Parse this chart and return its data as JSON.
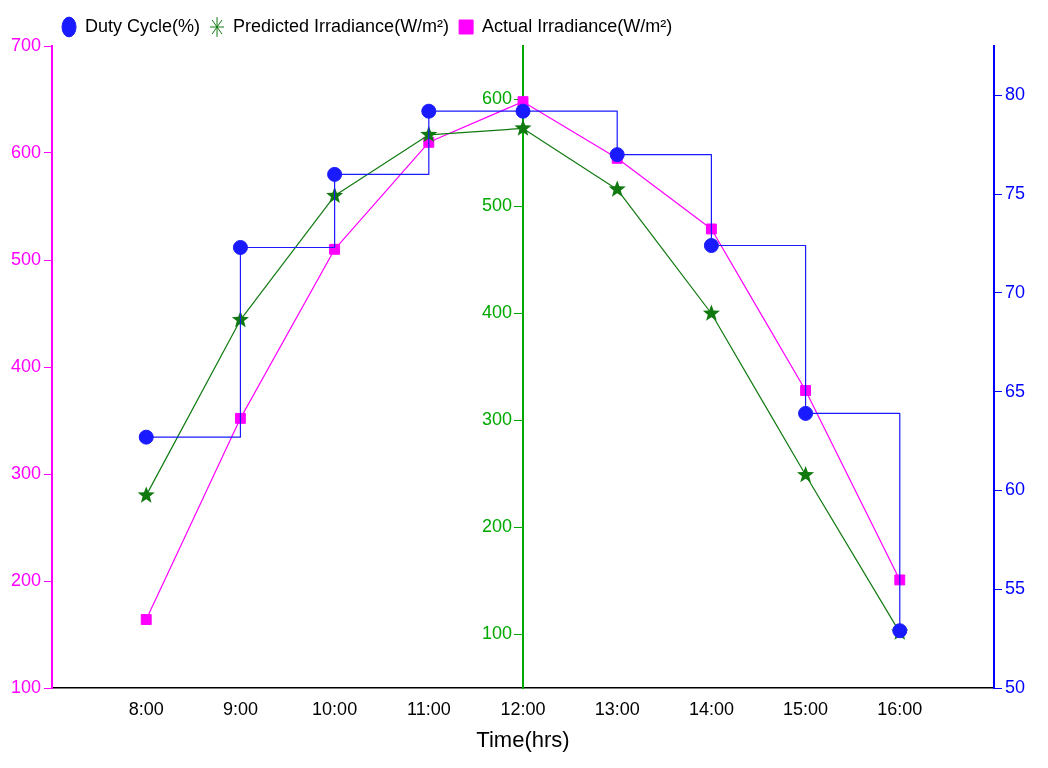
{
  "chart_data": {
    "type": "line",
    "xlabel": "Time(hrs)",
    "x": [
      8,
      9,
      10,
      11,
      12,
      13,
      14,
      15,
      16
    ],
    "xlim": [
      7,
      17
    ],
    "xticks": [
      {
        "value": 8,
        "label": "8:00"
      },
      {
        "value": 9,
        "label": "9:00"
      },
      {
        "value": 10,
        "label": "10:00"
      },
      {
        "value": 11,
        "label": "11:00"
      },
      {
        "value": 12,
        "label": "12:00"
      },
      {
        "value": 13,
        "label": "13:00"
      },
      {
        "value": 14,
        "label": "14:00"
      },
      {
        "value": 15,
        "label": "15:00"
      },
      {
        "value": 16,
        "label": "16:00"
      }
    ],
    "ylim": [
      100,
      700
    ],
    "yticks": [
      100,
      200,
      300,
      400,
      500,
      600,
      700
    ],
    "y2lim": [
      50,
      650
    ],
    "y2ticks": [
      100,
      200,
      300,
      400,
      500,
      600
    ],
    "y3lim": [
      50,
      82.5
    ],
    "y3ticks": [
      50,
      55,
      60,
      65,
      70,
      75,
      80
    ],
    "grid": false,
    "legend": "top left",
    "series": [
      {
        "name": "Actual Irradiance(W/m²)",
        "color": "#ff00ff",
        "marker": "square",
        "values": [
          164,
          352,
          510,
          610,
          648,
          595,
          529,
          378,
          201
        ]
      },
      {
        "name": "Predicted Irradiance(W/m²)",
        "axis": "y2",
        "color": "#107a10",
        "marker": "star",
        "values": [
          230,
          394,
          510,
          567,
          573,
          516,
          400,
          249,
          102
        ]
      },
      {
        "name": "Duty Cycle(%)",
        "type": "step",
        "axis": "y3",
        "color": "#1a1aff",
        "marker": "circle",
        "values": [
          62.7,
          72.3,
          76.0,
          79.2,
          79.2,
          77.0,
          72.4,
          63.9,
          52.9
        ]
      }
    ]
  }
}
